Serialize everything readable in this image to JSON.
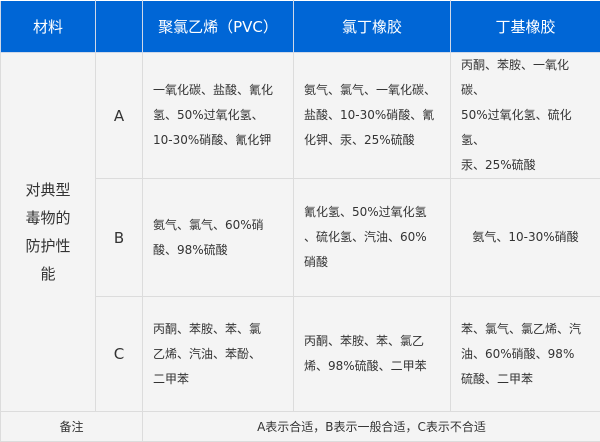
{
  "header": {
    "material": "材料",
    "grade": "",
    "columns": [
      "聚氯乙烯（PVC）",
      "氯丁橡胶",
      "丁基橡胶"
    ]
  },
  "row_label_lines": [
    "对典型",
    "毒物的",
    "防护性",
    "能"
  ],
  "rows": [
    {
      "grade": "A",
      "cells": [
        [
          "一氧化碳、盐酸、氰化",
          "氢、50%过氧化氢、",
          "10-30%硝酸、氰化钾"
        ],
        [
          "氨气、氯气、一氧化碳、",
          "盐酸、10-30%硝酸、氰",
          "化钾、汞、25%硫酸"
        ],
        [
          "丙酮、苯胺、一氧化碳、",
          "50%过氧化氢、硫化氢、",
          "汞、25%硫酸"
        ]
      ]
    },
    {
      "grade": "B",
      "cells": [
        [
          "氨气、氯气、60%硝",
          "酸、98%硫酸"
        ],
        [
          "氰化氢、50%过氧化氢",
          "、硫化氢、汽油、60%",
          "硝酸"
        ],
        [
          "氨气、10-30%硝酸"
        ]
      ]
    },
    {
      "grade": "C",
      "cells": [
        [
          "丙酮、苯胺、苯、氯",
          "乙烯、汽油、苯酚、",
          "二甲苯"
        ],
        [
          "丙酮、苯胺、苯、氯乙",
          "烯、98%硫酸、二甲苯"
        ],
        [
          "苯、氯气、氯乙烯、汽",
          "油、60%硝酸、98%",
          "硫酸、二甲苯"
        ]
      ]
    }
  ],
  "footer": {
    "label": "备注",
    "text": "A表示合适，B表示一般合适，C表示不合适"
  },
  "colors": {
    "header_bg": "#0066d6",
    "cell_bg": "#f4f4f4",
    "border": "#dcdcdc"
  }
}
